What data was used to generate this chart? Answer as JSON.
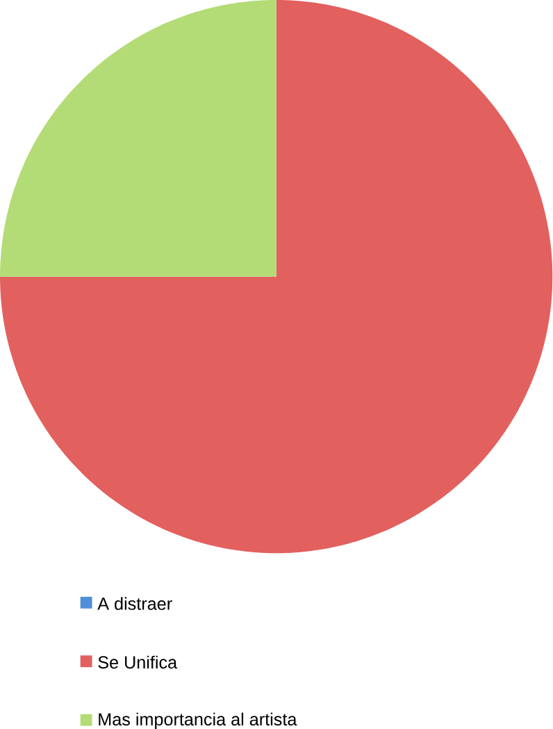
{
  "chart_data": {
    "type": "pie",
    "categories": [
      "A distraer",
      "Se Unifica",
      "Mas importancia al artista"
    ],
    "values": [
      0,
      75,
      25
    ],
    "colors": [
      "#4f8fd8",
      "#e2605e",
      "#b3dc76"
    ],
    "legend": "bottom"
  }
}
